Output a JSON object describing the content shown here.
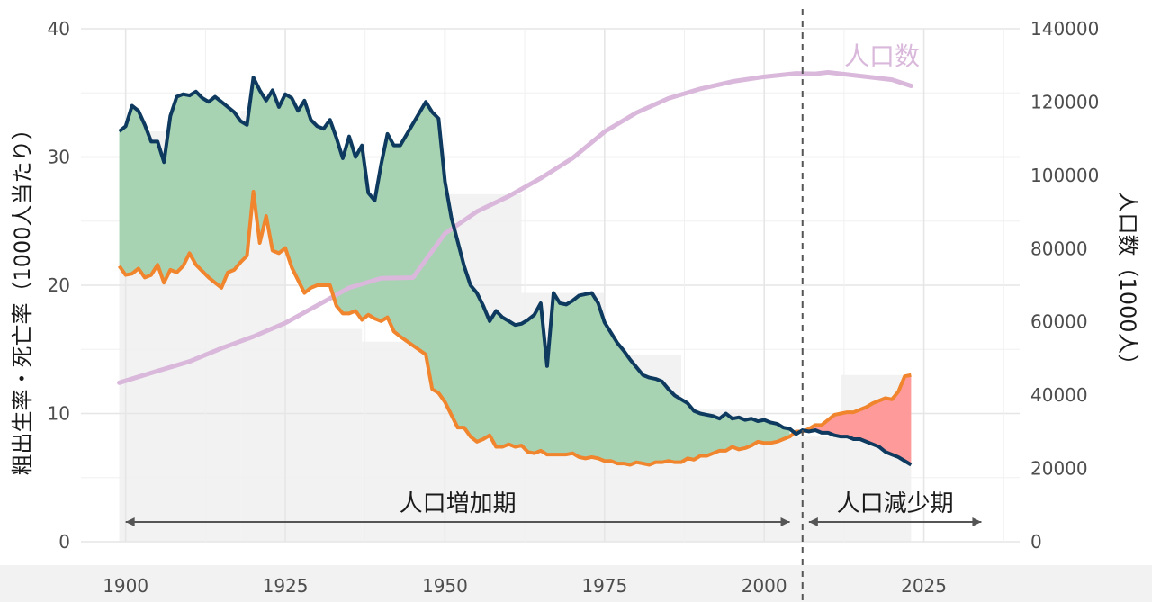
{
  "chart_data": {
    "type": "area",
    "xlim": [
      1893,
      2040
    ],
    "x_ticks": [
      1900,
      1925,
      1950,
      1975,
      2000,
      2025
    ],
    "y_left": {
      "label": "粗出生率・死亡率（1000人当たり）",
      "lim": [
        0,
        40
      ],
      "ticks": [
        0,
        10,
        20,
        30,
        40
      ]
    },
    "y_right": {
      "label": "人口数（1000人）",
      "lim": [
        0,
        140000
      ],
      "ticks": [
        0,
        20000,
        40000,
        60000,
        80000,
        100000,
        120000,
        140000
      ]
    },
    "grid": true,
    "vline_year": 2006,
    "annotations": [
      {
        "text": "人口増加期",
        "arrow_from": 1900,
        "arrow_to": 2004
      },
      {
        "text": "人口減少期",
        "arrow_from": 2007,
        "arrow_to": 2034
      }
    ],
    "population_label": "人口数",
    "colors": {
      "birth": "#0e3a5f",
      "death": "#f0852d",
      "increase_fill": "#a7d3b3",
      "decrease_fill": "#ff9a9a",
      "population": "#d9b8db",
      "background_bars": "#f2f2f2",
      "vline": "#555555"
    },
    "series": [
      {
        "name": "出生率",
        "x": [
          1899,
          1900,
          1901,
          1902,
          1903,
          1904,
          1905,
          1906,
          1907,
          1908,
          1909,
          1910,
          1911,
          1912,
          1913,
          1914,
          1915,
          1916,
          1917,
          1918,
          1919,
          1920,
          1921,
          1922,
          1923,
          1924,
          1925,
          1926,
          1927,
          1928,
          1929,
          1930,
          1931,
          1932,
          1933,
          1934,
          1935,
          1936,
          1937,
          1938,
          1939,
          1940,
          1941,
          1942,
          1943,
          1947,
          1948,
          1949,
          1950,
          1951,
          1952,
          1953,
          1954,
          1955,
          1956,
          1957,
          1958,
          1959,
          1960,
          1961,
          1962,
          1963,
          1964,
          1965,
          1966,
          1967,
          1968,
          1969,
          1970,
          1971,
          1972,
          1973,
          1974,
          1975,
          1976,
          1977,
          1978,
          1979,
          1980,
          1981,
          1982,
          1983,
          1984,
          1985,
          1986,
          1987,
          1988,
          1989,
          1990,
          1991,
          1992,
          1993,
          1994,
          1995,
          1996,
          1997,
          1998,
          1999,
          2000,
          2001,
          2002,
          2003,
          2004,
          2005,
          2006,
          2007,
          2008,
          2009,
          2010,
          2011,
          2012,
          2013,
          2014,
          2015,
          2016,
          2017,
          2018,
          2019,
          2020,
          2021,
          2022,
          2023
        ],
        "values": [
          32.0,
          32.4,
          34.0,
          33.6,
          32.5,
          31.2,
          31.2,
          29.6,
          33.2,
          34.7,
          34.9,
          34.8,
          35.1,
          34.6,
          34.3,
          34.7,
          34.3,
          33.9,
          33.5,
          32.8,
          32.5,
          36.2,
          35.2,
          34.4,
          35.2,
          33.9,
          34.9,
          34.6,
          33.6,
          34.4,
          32.9,
          32.4,
          32.2,
          32.9,
          31.5,
          29.9,
          31.6,
          30.0,
          30.9,
          27.2,
          26.6,
          29.4,
          31.8,
          30.9,
          30.9,
          34.3,
          33.5,
          33.0,
          28.1,
          25.3,
          23.4,
          21.5,
          20.0,
          19.4,
          18.4,
          17.2,
          18.0,
          17.5,
          17.2,
          16.9,
          17.0,
          17.3,
          17.7,
          18.6,
          13.7,
          19.4,
          18.6,
          18.5,
          18.8,
          19.2,
          19.3,
          19.4,
          18.6,
          17.1,
          16.3,
          15.5,
          14.9,
          14.2,
          13.6,
          13.0,
          12.8,
          12.7,
          12.5,
          11.9,
          11.4,
          11.1,
          10.8,
          10.2,
          10.0,
          9.9,
          9.8,
          9.6,
          10.0,
          9.6,
          9.7,
          9.5,
          9.6,
          9.4,
          9.5,
          9.3,
          9.2,
          8.9,
          8.8,
          8.4,
          8.7,
          8.6,
          8.7,
          8.5,
          8.5,
          8.3,
          8.2,
          8.2,
          8.0,
          8.0,
          7.8,
          7.6,
          7.4,
          7.0,
          6.8,
          6.6,
          6.3,
          6.0
        ]
      },
      {
        "name": "死亡率",
        "x": [
          1899,
          1900,
          1901,
          1902,
          1903,
          1904,
          1905,
          1906,
          1907,
          1908,
          1909,
          1910,
          1911,
          1912,
          1913,
          1914,
          1915,
          1916,
          1917,
          1918,
          1919,
          1920,
          1921,
          1922,
          1923,
          1924,
          1925,
          1926,
          1927,
          1928,
          1929,
          1930,
          1931,
          1932,
          1933,
          1934,
          1935,
          1936,
          1937,
          1938,
          1939,
          1940,
          1941,
          1942,
          1943,
          1947,
          1948,
          1949,
          1950,
          1951,
          1952,
          1953,
          1954,
          1955,
          1956,
          1957,
          1958,
          1959,
          1960,
          1961,
          1962,
          1963,
          1964,
          1965,
          1966,
          1967,
          1968,
          1969,
          1970,
          1971,
          1972,
          1973,
          1974,
          1975,
          1976,
          1977,
          1978,
          1979,
          1980,
          1981,
          1982,
          1983,
          1984,
          1985,
          1986,
          1987,
          1988,
          1989,
          1990,
          1991,
          1992,
          1993,
          1994,
          1995,
          1996,
          1997,
          1998,
          1999,
          2000,
          2001,
          2002,
          2003,
          2004,
          2005,
          2006,
          2007,
          2008,
          2009,
          2010,
          2011,
          2012,
          2013,
          2014,
          2015,
          2016,
          2017,
          2018,
          2019,
          2020,
          2021,
          2022,
          2023
        ],
        "values": [
          21.5,
          20.8,
          20.9,
          21.3,
          20.6,
          20.8,
          21.6,
          20.2,
          21.2,
          21.0,
          21.5,
          22.5,
          21.6,
          21.1,
          20.6,
          20.2,
          19.8,
          21.0,
          21.2,
          21.8,
          22.3,
          27.3,
          23.3,
          25.4,
          22.7,
          22.5,
          22.9,
          21.4,
          20.4,
          19.4,
          19.8,
          20.0,
          20.0,
          20.0,
          18.4,
          17.8,
          17.8,
          18.0,
          17.3,
          17.7,
          17.4,
          17.2,
          17.5,
          16.4,
          16.0,
          14.6,
          11.9,
          11.6,
          10.9,
          9.9,
          8.9,
          8.9,
          8.2,
          7.8,
          8.0,
          8.3,
          7.4,
          7.4,
          7.6,
          7.4,
          7.5,
          7.0,
          6.9,
          7.1,
          6.8,
          6.8,
          6.8,
          6.8,
          6.9,
          6.6,
          6.5,
          6.6,
          6.5,
          6.3,
          6.3,
          6.1,
          6.1,
          6.0,
          6.2,
          6.1,
          6.0,
          6.2,
          6.2,
          6.3,
          6.2,
          6.2,
          6.5,
          6.4,
          6.7,
          6.7,
          6.9,
          7.1,
          7.1,
          7.4,
          7.2,
          7.3,
          7.5,
          7.8,
          7.7,
          7.7,
          7.8,
          8.0,
          8.2,
          8.6,
          8.6,
          8.8,
          9.1,
          9.1,
          9.5,
          9.9,
          10.0,
          10.1,
          10.1,
          10.3,
          10.5,
          10.8,
          11.0,
          11.2,
          11.1,
          11.7,
          12.9,
          13.0
        ]
      },
      {
        "name": "人口数",
        "x": [
          1899,
          1905,
          1910,
          1915,
          1920,
          1925,
          1930,
          1935,
          1940,
          1945,
          1950,
          1955,
          1960,
          1965,
          1970,
          1975,
          1980,
          1985,
          1990,
          1995,
          2000,
          2005,
          2008,
          2010,
          2015,
          2020,
          2023
        ],
        "values": [
          43400,
          46600,
          49200,
          52800,
          56000,
          59700,
          64500,
          69300,
          71900,
          72100,
          84100,
          90100,
          94300,
          99200,
          104700,
          111900,
          117100,
          121000,
          123600,
          125600,
          126900,
          127800,
          127700,
          128100,
          127100,
          126100,
          124400
        ]
      }
    ]
  }
}
